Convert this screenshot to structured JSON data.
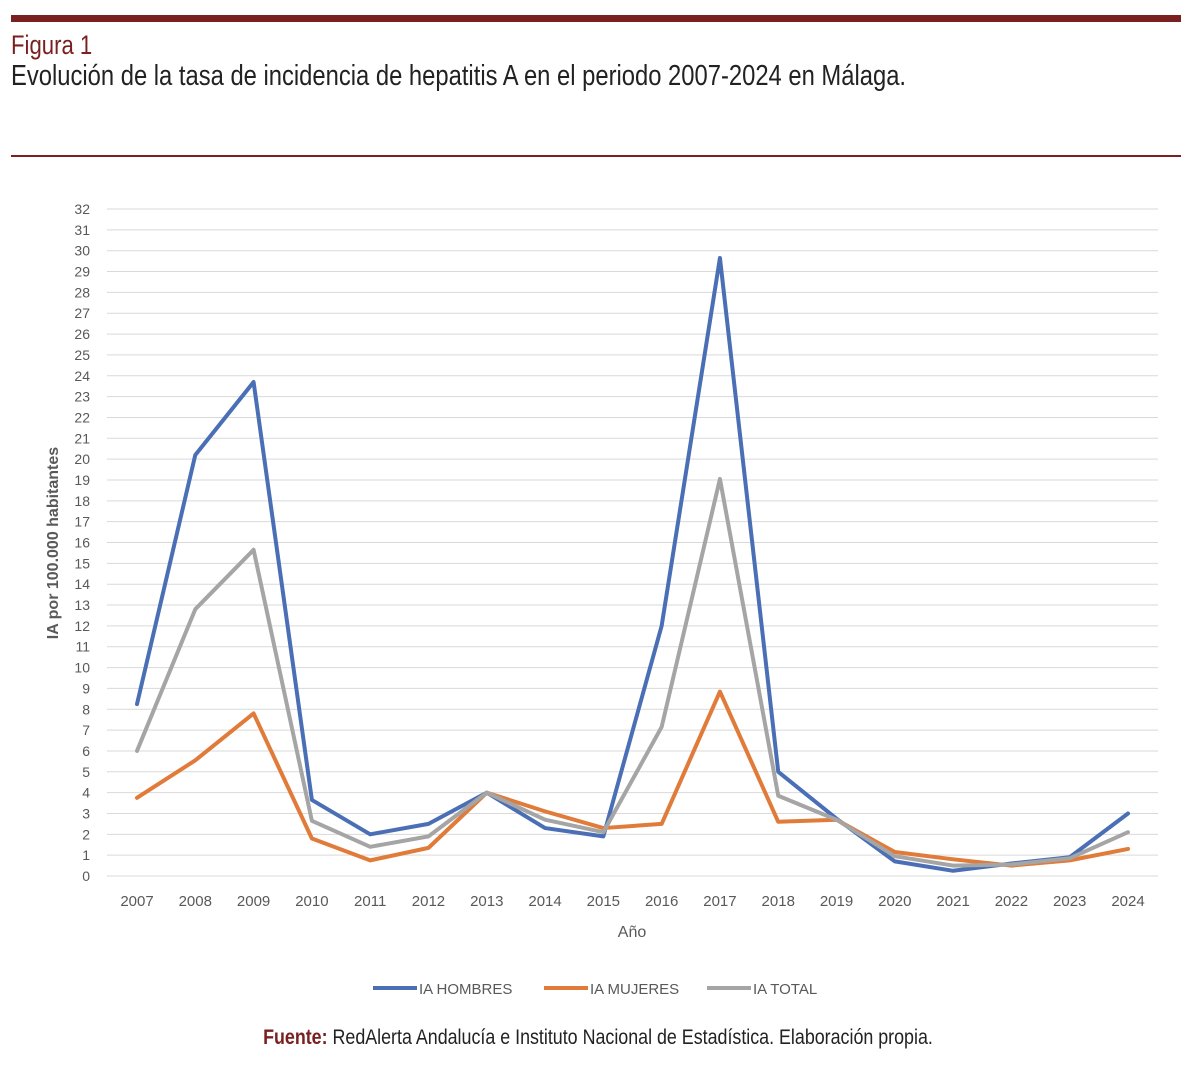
{
  "header": {
    "figure_label": "Figura 1",
    "title": "Evolución de la tasa de incidencia de hepatitis A en el periodo 2007-2024 en Málaga."
  },
  "source": {
    "label": "Fuente:",
    "text": "RedAlerta Andalucía e Instituto Nacional de Estadística. Elaboración propia."
  },
  "colors": {
    "accent": "#7a2020",
    "hombres": "#4a6fb5",
    "mujeres": "#e07b39",
    "total": "#a5a5a5",
    "grid": "#d9d9d9"
  },
  "chart_data": {
    "type": "line",
    "title": "",
    "xlabel": "Año",
    "ylabel": "IA por 100.000 habitantes",
    "ylim": [
      0,
      32
    ],
    "yticks": [
      0,
      1,
      2,
      3,
      4,
      5,
      6,
      7,
      8,
      9,
      10,
      11,
      12,
      13,
      14,
      15,
      16,
      17,
      18,
      19,
      20,
      21,
      22,
      23,
      24,
      25,
      26,
      27,
      28,
      29,
      30,
      31,
      32
    ],
    "grid": true,
    "legend_position": "bottom",
    "categories": [
      "2007",
      "2008",
      "2009",
      "2010",
      "2011",
      "2012",
      "2013",
      "2014",
      "2015",
      "2016",
      "2017",
      "2018",
      "2019",
      "2020",
      "2021",
      "2022",
      "2023",
      "2024"
    ],
    "series": [
      {
        "name": "IA HOMBRES",
        "color": "#4a6fb5",
        "values": [
          8.25,
          20.2,
          23.7,
          3.65,
          2.0,
          2.5,
          4.0,
          2.3,
          1.9,
          12.0,
          29.65,
          5.0,
          2.75,
          0.7,
          0.25,
          0.6,
          0.9,
          3.0
        ]
      },
      {
        "name": "IA MUJERES",
        "color": "#e07b39",
        "values": [
          3.75,
          5.55,
          7.8,
          1.8,
          0.75,
          1.35,
          4.0,
          3.1,
          2.3,
          2.5,
          8.85,
          2.6,
          2.7,
          1.15,
          0.8,
          0.5,
          0.75,
          1.3
        ]
      },
      {
        "name": "IA TOTAL",
        "color": "#a5a5a5",
        "values": [
          6.0,
          12.8,
          15.65,
          2.65,
          1.4,
          1.9,
          4.0,
          2.7,
          2.1,
          7.15,
          19.05,
          3.85,
          2.7,
          0.95,
          0.5,
          0.55,
          0.85,
          2.1
        ]
      }
    ]
  }
}
